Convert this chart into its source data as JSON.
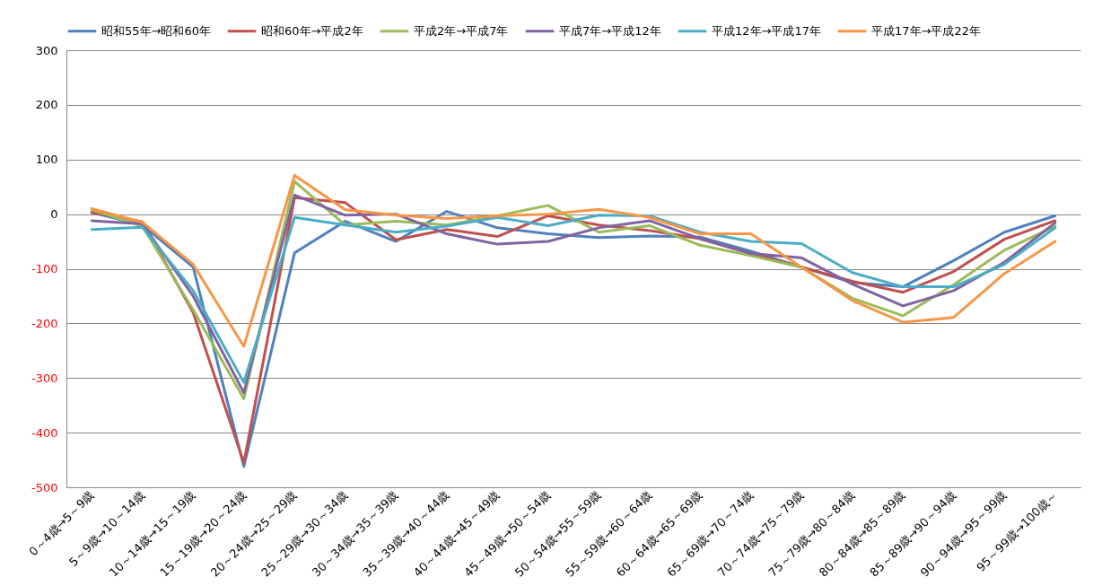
{
  "chart_data": {
    "type": "line",
    "categories": [
      "0～4歳→5～9歳",
      "5～9歳→10～14歳",
      "10～14歳→15～19歳",
      "15～19歳→20～24歳",
      "20～24歳→25～29歳",
      "25～29歳→30～34歳",
      "30～34歳→35～39歳",
      "35～39歳→40～44歳",
      "40～44歳→45～49歳",
      "45～49歳→50～54歳",
      "50～54歳→55～59歳",
      "55～59歳→60～64歳",
      "60～64歳→65～69歳",
      "65～69歳→70～74歳",
      "70～74歳→75～79歳",
      "75～79歳→80～84歳",
      "80～84歳→85～89歳",
      "85～89歳→90～94歳",
      "90～94歳→95～99歳",
      "95～99歳→100歳～"
    ],
    "series": [
      {
        "name": "昭和55年→昭和60年",
        "color": "#4f81bd",
        "values": [
          3,
          -20,
          -97,
          -462,
          -71,
          -13,
          -50,
          5,
          -25,
          -36,
          -43,
          -40,
          -42,
          -68,
          -97,
          -125,
          -133,
          -85,
          -33,
          -3
        ]
      },
      {
        "name": "昭和60年→平成2年",
        "color": "#c0504d",
        "values": [
          3,
          -14,
          -180,
          -455,
          30,
          21,
          -47,
          -28,
          -41,
          -3,
          -20,
          -30,
          -45,
          -72,
          -97,
          -123,
          -143,
          -105,
          -46,
          -12
        ]
      },
      {
        "name": "平成2年→平成7年",
        "color": "#9bbb59",
        "values": [
          8,
          -22,
          -175,
          -338,
          60,
          -20,
          -13,
          -20,
          -3,
          16,
          -33,
          -21,
          -57,
          -76,
          -97,
          -154,
          -186,
          -129,
          -66,
          -22
        ]
      },
      {
        "name": "平成7年→平成12年",
        "color": "#8064a2",
        "values": [
          -12,
          -18,
          -150,
          -327,
          35,
          -2,
          0,
          -36,
          -55,
          -50,
          -25,
          -12,
          -45,
          -72,
          -80,
          -128,
          -168,
          -140,
          -88,
          -16
        ]
      },
      {
        "name": "平成12年→平成17年",
        "color": "#4bacc6",
        "values": [
          -28,
          -24,
          -140,
          -308,
          -6,
          -20,
          -33,
          -22,
          -6,
          -21,
          -2,
          -3,
          -33,
          -50,
          -54,
          -107,
          -133,
          -133,
          -92,
          -25
        ]
      },
      {
        "name": "平成17年→平成22年",
        "color": "#f79646",
        "values": [
          10,
          -15,
          -92,
          -242,
          71,
          8,
          -2,
          -8,
          -3,
          0,
          9,
          -6,
          -36,
          -36,
          -97,
          -158,
          -198,
          -189,
          -109,
          -50
        ]
      }
    ],
    "ylim": [
      -500,
      300
    ],
    "yticks": [
      -500,
      -400,
      -300,
      -200,
      -100,
      0,
      100,
      200,
      300
    ],
    "grid": "y",
    "legend": "top"
  }
}
